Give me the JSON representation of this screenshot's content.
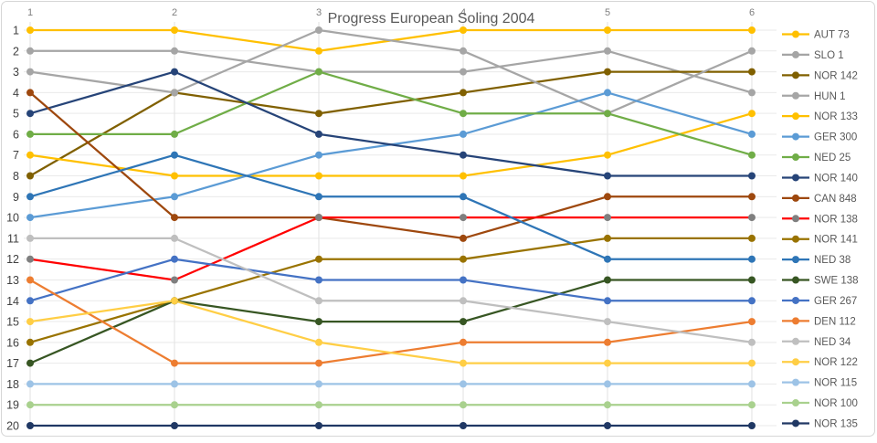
{
  "chart_data": {
    "type": "line",
    "subtype": "bump-rank-chart",
    "title": "Progress European Soling 2004",
    "x": [
      1,
      2,
      3,
      4,
      5,
      6
    ],
    "x_tick_labels": [
      "1",
      "2",
      "3",
      "4",
      "5",
      "6"
    ],
    "y_tick_labels": [
      "1",
      "2",
      "3",
      "4",
      "5",
      "6",
      "7",
      "8",
      "9",
      "10",
      "11",
      "12",
      "13",
      "14",
      "15",
      "16",
      "17",
      "18",
      "19",
      "20"
    ],
    "y_axis": {
      "inverted": true,
      "min": 1,
      "max": 20
    },
    "grid": true,
    "legend_position": "right",
    "colors": {
      "grid_h": "#e9e9e9",
      "grid_v": "#e2e2e2",
      "frame_border": "#d6d6d6",
      "title_text": "#595959",
      "x_tick_text": "#7f7f7f",
      "y_tick_text": "#404040",
      "legend_text": "#595959"
    },
    "series": [
      {
        "name": "AUT 73",
        "color": "#FFC000",
        "ranks": [
          1,
          1,
          2,
          1,
          1,
          1
        ]
      },
      {
        "name": "SLO 1",
        "color": "#A5A5A5",
        "ranks": [
          2,
          2,
          3,
          3,
          2,
          4
        ]
      },
      {
        "name": "NOR 142",
        "color": "#806000",
        "ranks": [
          8,
          4,
          5,
          4,
          3,
          3
        ]
      },
      {
        "name": "HUN 1",
        "color": "#A6A6A6",
        "ranks": [
          3,
          4,
          1,
          2,
          5,
          2
        ]
      },
      {
        "name": "NOR 133",
        "color": "#FFC000",
        "ranks": [
          7,
          8,
          8,
          8,
          7,
          5
        ]
      },
      {
        "name": "GER 300",
        "color": "#5B9BD5",
        "ranks": [
          10,
          9,
          7,
          6,
          4,
          6
        ]
      },
      {
        "name": "NED 25",
        "color": "#70AD47",
        "ranks": [
          6,
          6,
          3,
          5,
          5,
          7
        ]
      },
      {
        "name": "NOR 140",
        "color": "#264478",
        "ranks": [
          5,
          3,
          6,
          7,
          8,
          8
        ]
      },
      {
        "name": "CAN 848",
        "color": "#9E480E",
        "ranks": [
          4,
          10,
          10,
          11,
          9,
          9
        ]
      },
      {
        "name": "NOR 138",
        "color": "#FF0000",
        "marker": "#7F7F7F",
        "ranks": [
          12,
          13,
          10,
          10,
          10,
          10
        ]
      },
      {
        "name": "NOR 141",
        "color": "#997300",
        "ranks": [
          16,
          14,
          12,
          12,
          11,
          11
        ]
      },
      {
        "name": "NED 38",
        "color": "#2E75B6",
        "ranks": [
          9,
          7,
          9,
          9,
          12,
          12
        ]
      },
      {
        "name": "SWE 138",
        "color": "#375623",
        "ranks": [
          17,
          14,
          15,
          15,
          13,
          13
        ]
      },
      {
        "name": "GER 267",
        "color": "#4472C4",
        "ranks": [
          14,
          12,
          13,
          13,
          14,
          14
        ]
      },
      {
        "name": "DEN 112",
        "color": "#ED7D31",
        "ranks": [
          13,
          17,
          17,
          16,
          16,
          15
        ]
      },
      {
        "name": "NED 34",
        "color": "#BFBFBF",
        "ranks": [
          11,
          11,
          14,
          14,
          15,
          16
        ]
      },
      {
        "name": "NOR 122",
        "color": "#FFCE45",
        "ranks": [
          15,
          14,
          16,
          17,
          17,
          17
        ]
      },
      {
        "name": "NOR 115",
        "color": "#9DC3E6",
        "ranks": [
          18,
          18,
          18,
          18,
          18,
          18
        ]
      },
      {
        "name": "NOR 100",
        "color": "#A9D18E",
        "ranks": [
          19,
          19,
          19,
          19,
          19,
          19
        ]
      },
      {
        "name": "NOR 135",
        "color": "#203864",
        "ranks": [
          20,
          20,
          20,
          20,
          20,
          20
        ]
      }
    ]
  }
}
